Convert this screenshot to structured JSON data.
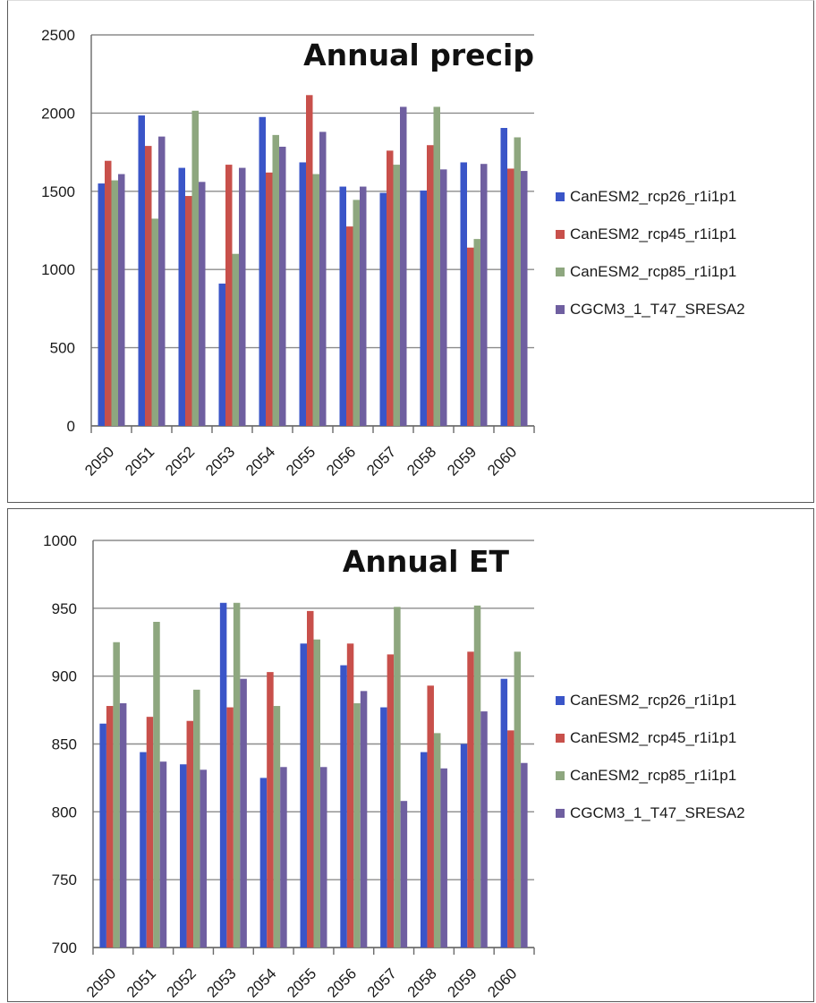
{
  "colors": [
    "#3a55c8",
    "#c8504b",
    "#8ea77f",
    "#6f5fa0"
  ],
  "chart_data": [
    {
      "type": "bar",
      "title": "Annual precip",
      "categories": [
        "2050",
        "2051",
        "2052",
        "2053",
        "2054",
        "2055",
        "2056",
        "2057",
        "2058",
        "2059",
        "2060"
      ],
      "ylim": [
        0,
        2500
      ],
      "yticks": [
        0,
        500,
        1000,
        1500,
        2000,
        2500
      ],
      "grid": true,
      "legend_position": "right",
      "series": [
        {
          "name": "CanESM2_rcp26_r1i1p1",
          "values": [
            1550,
            1985,
            1650,
            910,
            1975,
            1685,
            1530,
            1490,
            1505,
            1685,
            1905
          ]
        },
        {
          "name": "CanESM2_rcp45_r1i1p1",
          "values": [
            1695,
            1790,
            1470,
            1670,
            1620,
            2115,
            1275,
            1760,
            1795,
            1140,
            1645
          ]
        },
        {
          "name": "CanESM2_rcp85_r1i1p1",
          "values": [
            1570,
            1325,
            2015,
            1100,
            1860,
            1610,
            1445,
            1670,
            2040,
            1195,
            1845
          ]
        },
        {
          "name": "CGCM3_1_T47_SRESA2",
          "values": [
            1610,
            1850,
            1560,
            1650,
            1785,
            1880,
            1530,
            2040,
            1640,
            1675,
            1630
          ]
        }
      ]
    },
    {
      "type": "bar",
      "title": "Annual ET",
      "categories": [
        "2050",
        "2051",
        "2052",
        "2053",
        "2054",
        "2055",
        "2056",
        "2057",
        "2058",
        "2059",
        "2060"
      ],
      "ylim": [
        700,
        1000
      ],
      "yticks": [
        700,
        750,
        800,
        850,
        900,
        950,
        1000
      ],
      "grid": true,
      "legend_position": "right",
      "series": [
        {
          "name": "CanESM2_rcp26_r1i1p1",
          "values": [
            865,
            844,
            835,
            954,
            825,
            924,
            908,
            877,
            844,
            850,
            898
          ]
        },
        {
          "name": "CanESM2_rcp45_r1i1p1",
          "values": [
            878,
            870,
            867,
            877,
            903,
            948,
            924,
            916,
            893,
            918,
            860
          ]
        },
        {
          "name": "CanESM2_rcp85_r1i1p1",
          "values": [
            925,
            940,
            890,
            954,
            878,
            927,
            880,
            951,
            858,
            952,
            918
          ]
        },
        {
          "name": "CGCM3_1_T47_SRESA2",
          "values": [
            880,
            837,
            831,
            898,
            833,
            833,
            889,
            808,
            832,
            874,
            836
          ]
        }
      ]
    }
  ]
}
